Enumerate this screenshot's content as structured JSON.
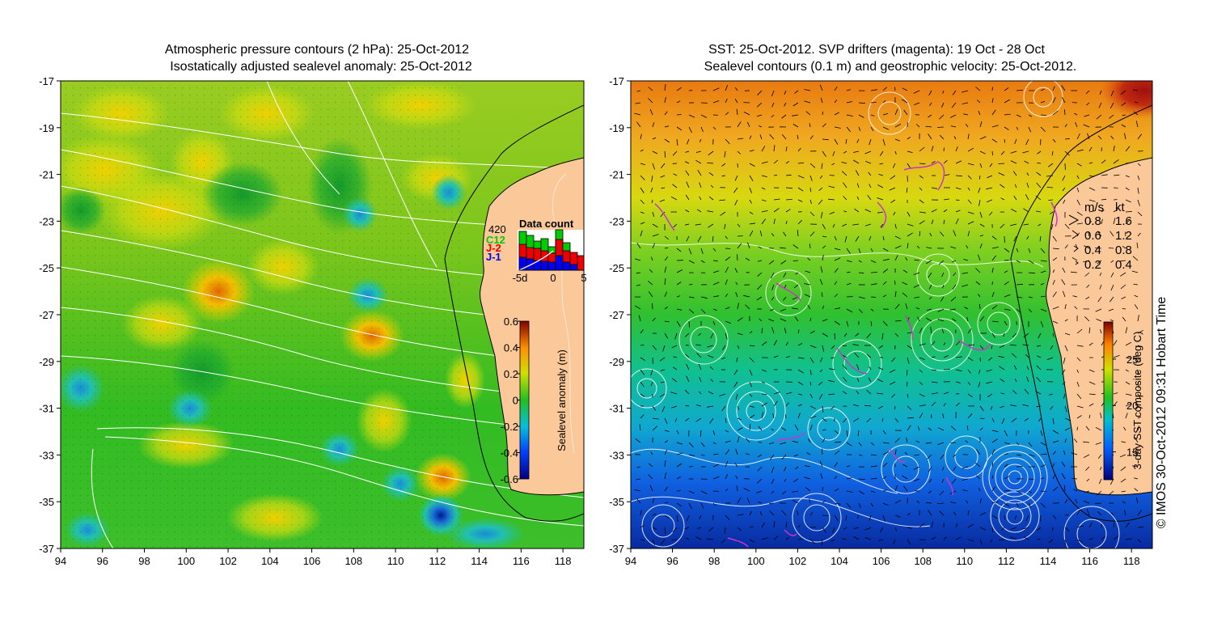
{
  "left_panel": {
    "title_line1": "Atmospheric pressure contours (2 hPa): 25-Oct-2012",
    "title_line2": "Isostatically adjusted sealevel anomaly: 25-Oct-2012",
    "lat_ticks": [
      "-17",
      "-19",
      "-21",
      "-23",
      "-25",
      "-27",
      "-29",
      "-31",
      "-33",
      "-35",
      "-37"
    ],
    "lon_ticks": [
      "94",
      "96",
      "98",
      "100",
      "102",
      "104",
      "106",
      "108",
      "110",
      "112",
      "114",
      "116",
      "118"
    ],
    "colorbar": {
      "label": "Sealevel anomaly (m)",
      "ticks": [
        "0.6",
        "0.4",
        "0.2",
        "0",
        "-0.2",
        "-0.4",
        "-0.6"
      ],
      "range": [
        -0.6,
        0.6
      ]
    },
    "data_count": {
      "title": "Data count",
      "max_label": "420",
      "legend": [
        {
          "name": "C12",
          "color": "#00cc00"
        },
        {
          "name": "J-2",
          "color": "#ee0000"
        },
        {
          "name": "J-1",
          "color": "#0000ee"
        }
      ],
      "x_ticks": [
        "-5d",
        "0",
        "5"
      ]
    }
  },
  "right_panel": {
    "title_line1": "SST: 25-Oct-2012. SVP drifters (magenta): 19 Oct - 28 Oct",
    "title_line2": "Sealevel contours (0.1 m) and geostrophic velocity: 25-Oct-2012.",
    "lat_ticks": [
      "-17",
      "-19",
      "-21",
      "-23",
      "-25",
      "-27",
      "-29",
      "-31",
      "-33",
      "-35",
      "-37"
    ],
    "lon_ticks": [
      "94",
      "96",
      "98",
      "100",
      "102",
      "104",
      "106",
      "108",
      "110",
      "112",
      "114",
      "116",
      "118"
    ],
    "colorbar": {
      "label": "3-day SST composite (deg C)",
      "ticks": [
        "25",
        "20",
        "15"
      ],
      "range": [
        12,
        29
      ]
    },
    "velocity_legend": {
      "header_ms": "m/s",
      "header_kt": "kt",
      "rows": [
        {
          "ms": "0.8",
          "kt": "1.6"
        },
        {
          "ms": "0.6",
          "kt": "1.2"
        },
        {
          "ms": "0.4",
          "kt": "0.8"
        },
        {
          "ms": "0.2",
          "kt": "0.4"
        }
      ]
    }
  },
  "credit": "© IMOS 30-Oct-2012 09:31 Hobart Time",
  "colors": {
    "land": "#fbc89a",
    "contour": "#ffffff",
    "drifter": "#cc33cc",
    "coast": "#000000"
  }
}
